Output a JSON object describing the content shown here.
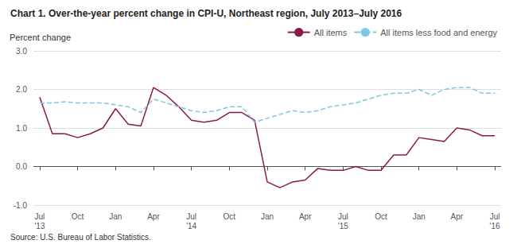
{
  "chart_data": {
    "type": "line",
    "title": "Chart 1. Over-the-year percent change in CPI-U, Northeast region, July 2013–July 2016",
    "ylabel": "Percent change",
    "annotations": [
      "Source: U.S. Bureau of Labor Statistics."
    ],
    "categories": [
      "Jul\n'13",
      null,
      null,
      "Oct",
      null,
      null,
      "Jan",
      null,
      null,
      "Apr",
      null,
      null,
      "Jul\n'14",
      null,
      null,
      "Oct",
      null,
      null,
      "Jan",
      null,
      null,
      "Apr",
      null,
      null,
      "Jul\n'15",
      null,
      null,
      "Oct",
      null,
      null,
      "Jan",
      null,
      null,
      "Apr",
      null,
      null,
      "Jul\n'16"
    ],
    "series": [
      {
        "name": "All items",
        "color": "#8B1A4A",
        "line_style": "solid",
        "values": [
          1.8,
          0.85,
          0.85,
          0.75,
          0.85,
          1.0,
          1.5,
          1.1,
          1.05,
          2.05,
          1.85,
          1.55,
          1.2,
          1.15,
          1.2,
          1.4,
          1.4,
          1.2,
          -0.4,
          -0.55,
          -0.4,
          -0.35,
          -0.05,
          -0.1,
          -0.1,
          0.0,
          -0.1,
          -0.1,
          0.3,
          0.3,
          0.75,
          0.7,
          0.65,
          1.0,
          0.95,
          0.8,
          0.8
        ]
      },
      {
        "name": "All items less food and energy",
        "color": "#7EC8E3",
        "line_style": "dashed",
        "values": [
          1.65,
          1.65,
          1.68,
          1.65,
          1.65,
          1.65,
          1.6,
          1.55,
          1.4,
          1.75,
          1.65,
          1.55,
          1.45,
          1.4,
          1.45,
          1.55,
          1.55,
          1.15,
          1.25,
          1.35,
          1.45,
          1.4,
          1.45,
          1.55,
          1.6,
          1.65,
          1.75,
          1.85,
          1.9,
          1.9,
          2.0,
          1.85,
          2.0,
          2.05,
          2.05,
          1.9,
          1.9
        ]
      }
    ],
    "ylim": [
      -1.0,
      3.0
    ],
    "yticks": [
      {
        "value": -1.0,
        "label": "-1.0"
      },
      {
        "value": 0.0,
        "label": "0.0"
      },
      {
        "value": 1.0,
        "label": "1.0"
      },
      {
        "value": 2.0,
        "label": "2.0"
      },
      {
        "value": 3.0,
        "label": "3.0"
      }
    ],
    "grid": true,
    "legend": "upper right"
  }
}
